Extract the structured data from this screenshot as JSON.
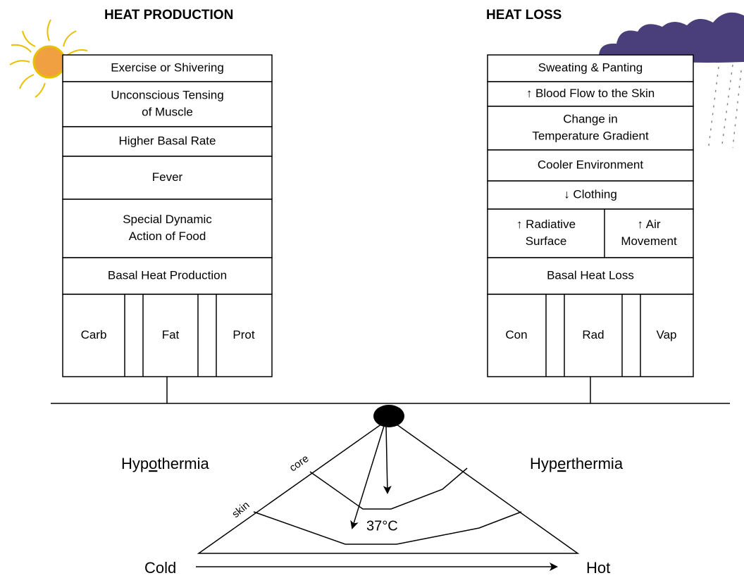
{
  "heat_production": {
    "title": "HEAT PRODUCTION",
    "rows": [
      [
        [
          "Exercise or Shivering"
        ]
      ],
      [
        [
          "Unconscious Tensing",
          "of Muscle"
        ]
      ],
      [
        [
          "Higher Basal Rate"
        ]
      ],
      [
        [
          "Fever"
        ]
      ],
      [
        [
          "Special Dynamic",
          "Action of Food"
        ]
      ],
      [
        [
          "Basal Heat Production"
        ]
      ]
    ],
    "components": [
      "Carb",
      "Fat",
      "Prot"
    ]
  },
  "heat_loss": {
    "title": "HEAT LOSS",
    "rows": [
      [
        [
          "Sweating & Panting"
        ]
      ],
      [
        [
          "↑ Blood Flow to the Skin"
        ]
      ],
      [
        [
          "Change in",
          "Temperature Gradient"
        ]
      ],
      [
        [
          "Cooler Environment"
        ]
      ],
      [
        [
          "↓ Clothing"
        ]
      ],
      [
        [
          "↑  Radiative",
          "Surface"
        ],
        [
          "↑  Air",
          "Movement"
        ]
      ],
      [
        [
          "Basal Heat Loss"
        ]
      ]
    ],
    "components": [
      "Con",
      "Rad",
      "Vap"
    ]
  },
  "scale": {
    "hypothermia": {
      "before": "Hyp",
      "underlined": "o",
      "after": "thermia"
    },
    "hyperthermia": {
      "before": "Hyp",
      "underlined": "e",
      "after": "rthermia"
    },
    "core": "core",
    "skin": "skin",
    "temperature": "37°C",
    "cold": "Cold",
    "hot": "Hot"
  }
}
